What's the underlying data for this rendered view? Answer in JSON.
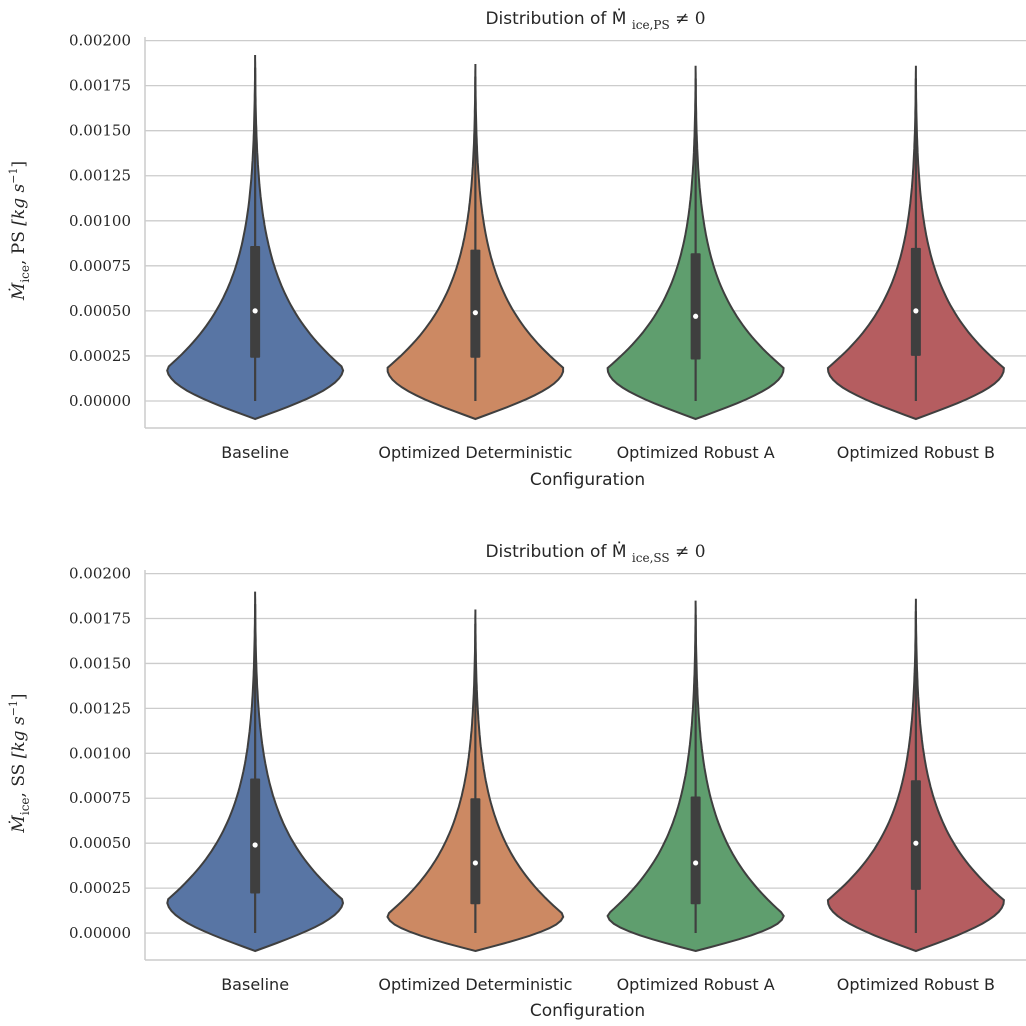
{
  "chart_data": [
    {
      "type": "violin",
      "title": "Distribution of Ṁ",
      "title_subscript": "ice,PS",
      "title_suffix": "≠ 0",
      "xlabel": "Configuration",
      "ylabel_main": "Ṁ",
      "ylabel_subscript": "ice",
      "ylabel_tag": ", PS",
      "ylabel_unit": "[kg s",
      "ylabel_exp": "−1",
      "ylabel_close": "]",
      "ylim": [
        -0.00015,
        0.00202
      ],
      "yticks": [
        0,
        0.00025,
        0.0005,
        0.00075,
        0.001,
        0.00125,
        0.0015,
        0.00175,
        0.002
      ],
      "ytick_labels": [
        "0.00000",
        "0.00025",
        "0.00050",
        "0.00075",
        "0.00100",
        "0.00125",
        "0.00150",
        "0.00175",
        "0.00200"
      ],
      "grid": true,
      "categories": [
        "Baseline",
        "Optimized Deterministic",
        "Optimized Robust A",
        "Optimized Robust B"
      ],
      "series": [
        {
          "min": 0,
          "q1": 0.00024,
          "median": 0.0005,
          "q3": 0.00086,
          "max": 0.00185,
          "violin_bottom": -0.0001,
          "violin_top": 0.00192,
          "mode": 0.00018
        },
        {
          "min": 0,
          "q1": 0.00024,
          "median": 0.00049,
          "q3": 0.00084,
          "max": 0.0018,
          "violin_bottom": -0.0001,
          "violin_top": 0.00187,
          "mode": 0.00018
        },
        {
          "min": 0,
          "q1": 0.00023,
          "median": 0.00047,
          "q3": 0.00082,
          "max": 0.00179,
          "violin_bottom": -0.0001,
          "violin_top": 0.00186,
          "mode": 0.00018
        },
        {
          "min": 0,
          "q1": 0.00025,
          "median": 0.0005,
          "q3": 0.00085,
          "max": 0.00179,
          "violin_bottom": -0.0001,
          "violin_top": 0.00186,
          "mode": 0.00018
        }
      ]
    },
    {
      "type": "violin",
      "title": "Distribution of Ṁ",
      "title_subscript": "ice,SS",
      "title_suffix": "≠ 0",
      "xlabel": "Configuration",
      "ylabel_main": "Ṁ",
      "ylabel_subscript": "ice",
      "ylabel_tag": ", SS",
      "ylabel_unit": "[kg s",
      "ylabel_exp": "−1",
      "ylabel_close": "]",
      "ylim": [
        -0.00015,
        0.00202
      ],
      "yticks": [
        0,
        0.00025,
        0.0005,
        0.00075,
        0.001,
        0.00125,
        0.0015,
        0.00175,
        0.002
      ],
      "ytick_labels": [
        "0.00000",
        "0.00025",
        "0.00050",
        "0.00075",
        "0.00100",
        "0.00125",
        "0.00150",
        "0.00175",
        "0.00200"
      ],
      "grid": true,
      "categories": [
        "Baseline",
        "Optimized Deterministic",
        "Optimized Robust A",
        "Optimized Robust B"
      ],
      "series": [
        {
          "min": 0,
          "q1": 0.00022,
          "median": 0.00049,
          "q3": 0.00086,
          "max": 0.00183,
          "violin_bottom": -0.0001,
          "violin_top": 0.0019,
          "mode": 0.00018
        },
        {
          "min": 0,
          "q1": 0.00016,
          "median": 0.00039,
          "q3": 0.00075,
          "max": 0.00172,
          "violin_bottom": -0.0001,
          "violin_top": 0.0018,
          "mode": 0.0001
        },
        {
          "min": 0,
          "q1": 0.00016,
          "median": 0.00039,
          "q3": 0.00076,
          "max": 0.00177,
          "violin_bottom": -0.0001,
          "violin_top": 0.00185,
          "mode": 0.0001
        },
        {
          "min": 0,
          "q1": 0.00024,
          "median": 0.0005,
          "q3": 0.00085,
          "max": 0.00179,
          "violin_bottom": -0.0001,
          "violin_top": 0.00186,
          "mode": 0.00018
        }
      ]
    }
  ],
  "colors": {
    "series": [
      "#5875a4",
      "#cc8963",
      "#5f9e6e",
      "#b55d60"
    ],
    "outline": "#3f3f3f",
    "grid": "#cccccc"
  }
}
